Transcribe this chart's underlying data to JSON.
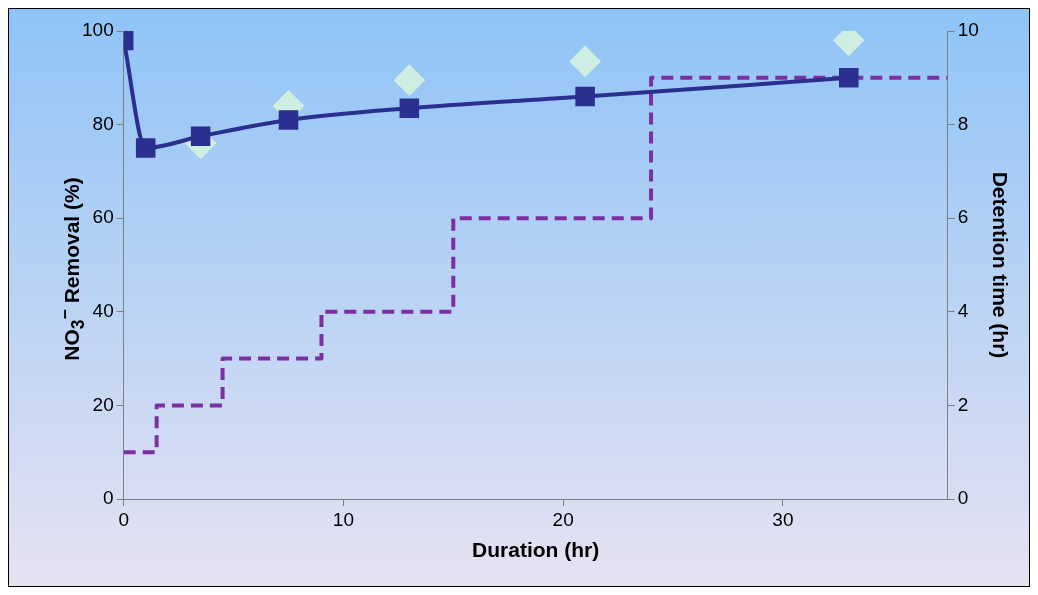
{
  "chart_data": {
    "type": "line",
    "xlabel": "Duration (hr)",
    "ylabel": "NO$_{3}$$^{−}$ Removal (%)",
    "y2label": "Detention time (hr)",
    "xlim": [
      0,
      37.5
    ],
    "xticks": [
      0,
      10,
      20,
      30
    ],
    "ylim": [
      0,
      100
    ],
    "yticks": [
      0,
      20,
      40,
      60,
      80,
      100
    ],
    "y2lim": [
      0,
      10
    ],
    "y2ticks": [
      0,
      2,
      4,
      6,
      8,
      10
    ],
    "grid": false,
    "legend": false,
    "series": [
      {
        "type": "step",
        "axis": "y2",
        "color": "#7b2fa0",
        "line_style": "dashed",
        "marker": "none",
        "x": [
          0,
          1.5,
          4.5,
          9,
          15,
          24,
          37.5
        ],
        "values": [
          1,
          2,
          3,
          4,
          6,
          9,
          9
        ]
      },
      {
        "type": "scatter",
        "color": "#cdeee0",
        "marker": "diamond",
        "x": [
          3.5,
          7.5,
          13,
          21,
          33
        ],
        "values": [
          76,
          84,
          89.5,
          93.5,
          98
        ]
      },
      {
        "type": "line",
        "color": "#2b2f8f",
        "marker": "square",
        "line_style": "solid",
        "x": [
          0,
          1,
          3.5,
          7.5,
          13,
          21,
          33
        ],
        "values": [
          98,
          75,
          77.5,
          81,
          83.5,
          86,
          90
        ]
      }
    ]
  }
}
